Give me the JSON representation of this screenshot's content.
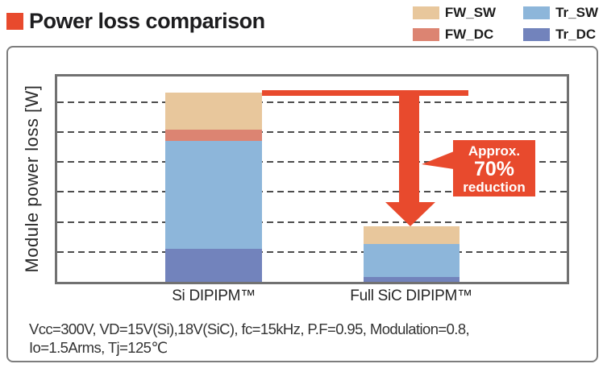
{
  "title": {
    "text": "Power loss comparison"
  },
  "colors": {
    "accent_red": "#e84a2d",
    "fw_sw": "#e8c79c",
    "fw_dc": "#dc8472",
    "tr_sw": "#8db6da",
    "tr_dc": "#7283bc"
  },
  "legend": {
    "items": [
      {
        "label": "FW_SW",
        "color": "#e8c79c"
      },
      {
        "label": "Tr_SW",
        "color": "#8db6da"
      },
      {
        "label": "FW_DC",
        "color": "#dc8472"
      },
      {
        "label": "Tr_DC",
        "color": "#7283bc"
      }
    ]
  },
  "chart_data": {
    "type": "bar",
    "subtype": "stacked",
    "title": "Power loss comparison",
    "ylabel": "Module power loss [W]",
    "xlabel": "",
    "categories": [
      "Si DIPIPM™",
      "Full SiC DIPIPM™"
    ],
    "y_axis_note": "no numeric tick labels shown; values estimated in gridline units (1 unit = 1 dashed gridline spacing)",
    "ylim": [
      0,
      6.9
    ],
    "gridlines": {
      "count": 6,
      "style": "dashed",
      "spacing_units": 1
    },
    "legend_position": "top-right",
    "series": [
      {
        "name": "Tr_DC",
        "color": "#7283bc",
        "values": [
          1.1,
          0.16
        ]
      },
      {
        "name": "Tr_SW",
        "color": "#8db6da",
        "values": [
          3.6,
          1.1
        ]
      },
      {
        "name": "FW_DC",
        "color": "#dc8472",
        "values": [
          0.38,
          0
        ]
      },
      {
        "name": "FW_SW",
        "color": "#e8c79c",
        "values": [
          1.23,
          0.6
        ]
      }
    ],
    "totals_units": [
      6.31,
      1.86
    ],
    "annotation": {
      "lines": [
        "Approx.",
        "70%",
        "reduction"
      ]
    }
  },
  "conditions": {
    "line1": "Vcc=300V, VD=15V(Si),18V(SiC), fc=15kHz, P.F=0.95, Modulation=0.8,",
    "line2": "Io=1.5Arms, Tj=125℃"
  }
}
